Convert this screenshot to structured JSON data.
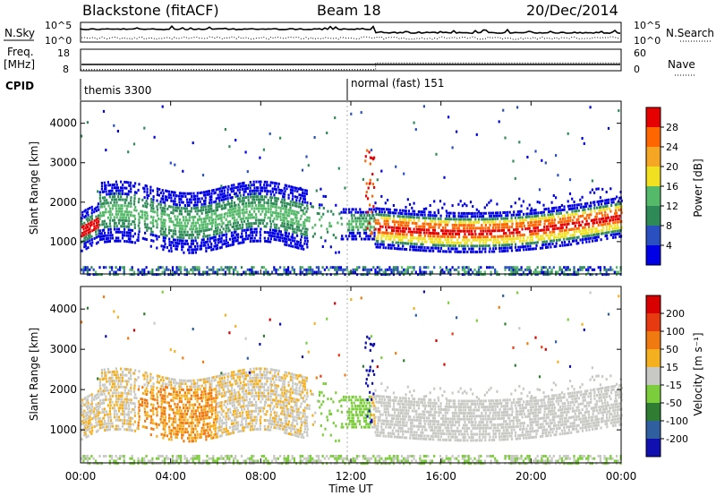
{
  "chart_data": [
    {
      "type": "line",
      "panel": "noise",
      "title_left": "Blackstone (fitACF)",
      "title_center": "Beam 18",
      "title_right": "20/Dec/2014",
      "left_label": "N.Sky",
      "right_label": "N.Search",
      "yticks_left": [
        "10^5",
        "10^0"
      ],
      "yticks_right": [
        "10^5",
        "10^0"
      ]
    },
    {
      "type": "line",
      "panel": "frequency",
      "left_label_line1": "Freq.",
      "left_label_line2": "[MHz]",
      "right_label": "Nave",
      "yticks_left": [
        "18",
        "8"
      ],
      "yticks_right": [
        "60",
        "0"
      ],
      "nave_step_at_hour": 13.1,
      "nave_before": 3,
      "nave_after": 22
    },
    {
      "type": "table",
      "panel": "cpid",
      "label": "CPID",
      "modes": [
        {
          "start_hour": 0,
          "text": "themis 3300"
        },
        {
          "start_hour": 11.85,
          "text": "normal (fast) 151"
        }
      ]
    },
    {
      "type": "heatmap",
      "panel": "power",
      "ylabel": "Slant Range [km]",
      "ylim": [
        180,
        4560
      ],
      "xlim_hours": [
        0,
        24
      ],
      "yticks": [
        1000,
        2000,
        3000,
        4000
      ],
      "colorbar_label": "Power [dB]",
      "colorbar_ticks": [
        "28",
        "24",
        "20",
        "16",
        "12",
        "8",
        "4"
      ],
      "colorbar_colors": [
        "#0000e6",
        "#2a4fc0",
        "#2e8b57",
        "#55b96a",
        "#f0e020",
        "#f5a623",
        "#ff6600",
        "#e60000"
      ]
    },
    {
      "type": "heatmap",
      "panel": "velocity",
      "ylabel": "Slant Range [km]",
      "ylim": [
        180,
        4560
      ],
      "xlim_hours": [
        0,
        24
      ],
      "yticks": [
        1000,
        2000,
        3000,
        4000
      ],
      "colorbar_label": "Velocity [m s⁻¹]",
      "colorbar_ticks": [
        "200",
        "100",
        "50",
        "15",
        "-15",
        "-50",
        "-100",
        "-200"
      ],
      "colorbar_colors": [
        "#1010b0",
        "#2f5f9f",
        "#2e7d32",
        "#7ccd3c",
        "#c8c8c4",
        "#f5b020",
        "#f07a10",
        "#e83a10",
        "#d80000"
      ],
      "xticks": [
        "00:00",
        "04:00",
        "08:00",
        "12:00",
        "16:00",
        "20:00",
        "00:00"
      ],
      "xlabel": "Time UT"
    }
  ]
}
